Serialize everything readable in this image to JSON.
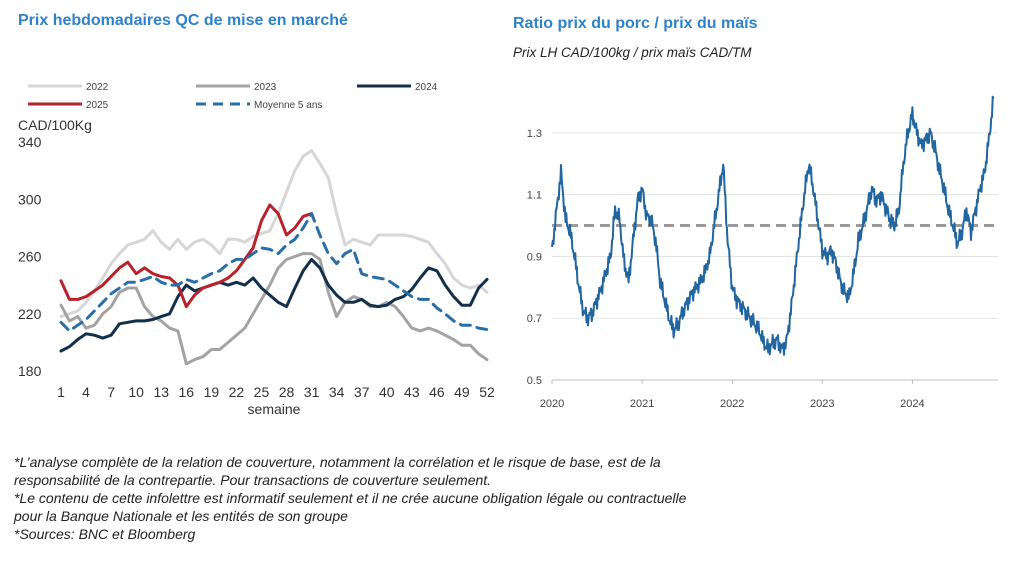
{
  "chart_data": [
    {
      "type": "line",
      "title": "Prix hebdomadaires QC de mise en marché",
      "ylabel": "CAD/100Kg",
      "xlabel": "semaine",
      "ylim": [
        180,
        340
      ],
      "yticks": [
        180,
        220,
        260,
        300,
        340
      ],
      "xlim": [
        1,
        52
      ],
      "xticks": [
        1,
        4,
        7,
        10,
        13,
        16,
        19,
        22,
        25,
        28,
        31,
        34,
        37,
        40,
        43,
        46,
        49,
        52
      ],
      "legend_placement": "top",
      "grid": false,
      "series": [
        {
          "name": "2022",
          "color": "#d6d6d6",
          "style": "solid",
          "x": [
            1,
            2,
            3,
            4,
            5,
            6,
            7,
            8,
            9,
            10,
            11,
            12,
            13,
            14,
            15,
            16,
            17,
            18,
            19,
            20,
            21,
            22,
            23,
            24,
            25,
            26,
            27,
            28,
            29,
            30,
            31,
            32,
            33,
            34,
            35,
            36,
            37,
            38,
            39,
            40,
            41,
            42,
            43,
            44,
            45,
            46,
            47,
            48,
            49,
            50,
            51,
            52
          ],
          "y": [
            218,
            220,
            222,
            228,
            236,
            245,
            255,
            262,
            268,
            270,
            272,
            278,
            270,
            265,
            272,
            265,
            270,
            272,
            268,
            262,
            272,
            272,
            270,
            274,
            276,
            278,
            290,
            305,
            320,
            330,
            334,
            325,
            315,
            290,
            268,
            272,
            270,
            268,
            275,
            275,
            275,
            275,
            274,
            272,
            270,
            262,
            255,
            245,
            240,
            238,
            240,
            235
          ]
        },
        {
          "name": "2023",
          "color": "#a3a3a3",
          "style": "solid",
          "x": [
            1,
            2,
            3,
            4,
            5,
            6,
            7,
            8,
            9,
            10,
            11,
            12,
            13,
            14,
            15,
            16,
            17,
            18,
            19,
            20,
            21,
            22,
            23,
            24,
            25,
            26,
            27,
            28,
            29,
            30,
            31,
            32,
            33,
            34,
            35,
            36,
            37,
            38,
            39,
            40,
            41,
            42,
            43,
            44,
            45,
            46,
            47,
            48,
            49,
            50,
            51,
            52
          ],
          "y": [
            226,
            215,
            218,
            210,
            212,
            220,
            225,
            235,
            238,
            238,
            225,
            218,
            215,
            210,
            208,
            185,
            188,
            190,
            195,
            195,
            200,
            205,
            210,
            220,
            230,
            240,
            252,
            258,
            260,
            262,
            262,
            258,
            235,
            218,
            228,
            232,
            230,
            225,
            225,
            228,
            225,
            218,
            210,
            208,
            210,
            208,
            205,
            202,
            198,
            198,
            192,
            188
          ]
        },
        {
          "name": "2024",
          "color": "#13304b",
          "style": "solid",
          "x": [
            1,
            2,
            3,
            4,
            5,
            6,
            7,
            8,
            9,
            10,
            11,
            12,
            13,
            14,
            15,
            16,
            17,
            18,
            19,
            20,
            21,
            22,
            23,
            24,
            25,
            26,
            27,
            28,
            29,
            30,
            31,
            32,
            33,
            34,
            35,
            36,
            37,
            38,
            39,
            40,
            41,
            42,
            43,
            44,
            45,
            46,
            47,
            48,
            49,
            50,
            51,
            52
          ],
          "y": [
            194,
            197,
            202,
            206,
            205,
            203,
            205,
            213,
            214,
            215,
            215,
            216,
            218,
            220,
            232,
            240,
            236,
            238,
            240,
            242,
            240,
            242,
            240,
            245,
            238,
            233,
            228,
            225,
            238,
            250,
            258,
            252,
            240,
            233,
            228,
            228,
            230,
            226,
            225,
            226,
            230,
            232,
            237,
            245,
            252,
            250,
            240,
            232,
            226,
            226,
            238,
            244
          ]
        },
        {
          "name": "2025",
          "color": "#b8222a",
          "style": "solid",
          "x": [
            1,
            2,
            3,
            4,
            5,
            6,
            7,
            8,
            9,
            10,
            11,
            12,
            13,
            14,
            15,
            16,
            17,
            18,
            19,
            20,
            21,
            22,
            23,
            24,
            25,
            26,
            27,
            28,
            29,
            30,
            31
          ],
          "y": [
            243,
            230,
            230,
            232,
            236,
            240,
            246,
            252,
            256,
            248,
            252,
            248,
            246,
            245,
            240,
            225,
            233,
            238,
            240,
            242,
            245,
            250,
            258,
            266,
            285,
            296,
            290,
            275,
            280,
            288,
            290
          ]
        },
        {
          "name": "Moyenne 5 ans",
          "color": "#2a6ea8",
          "style": "dashed",
          "x": [
            1,
            2,
            3,
            4,
            5,
            6,
            7,
            8,
            9,
            10,
            11,
            12,
            13,
            14,
            15,
            16,
            17,
            18,
            19,
            20,
            21,
            22,
            23,
            24,
            25,
            26,
            27,
            28,
            29,
            30,
            31,
            32,
            33,
            34,
            35,
            36,
            37,
            38,
            39,
            40,
            41,
            42,
            43,
            44,
            45,
            46,
            47,
            48,
            49,
            50,
            51,
            52
          ],
          "y": [
            214,
            208,
            212,
            216,
            222,
            228,
            234,
            238,
            242,
            242,
            244,
            246,
            242,
            240,
            240,
            244,
            242,
            245,
            248,
            250,
            255,
            258,
            258,
            262,
            266,
            265,
            262,
            268,
            272,
            280,
            290,
            275,
            262,
            255,
            262,
            265,
            248,
            246,
            245,
            244,
            240,
            236,
            232,
            230,
            230,
            224,
            220,
            215,
            212,
            212,
            210,
            209
          ]
        }
      ]
    },
    {
      "type": "line",
      "title": "Ratio prix du porc / prix du maïs",
      "subtitle": "Prix LH CAD/100kg / prix maïs CAD/TM",
      "ylim": [
        0.5,
        1.4
      ],
      "yticks": [
        "0.5",
        "0.7",
        "0.9",
        "1.1",
        "1.3"
      ],
      "xlim": [
        2020.0,
        2024.95
      ],
      "xticks": [
        "2020",
        "2021",
        "2022",
        "2023",
        "2024"
      ],
      "reference_line": {
        "y": 1.0,
        "color": "#9a9a9a",
        "style": "dashed"
      },
      "grid": true,
      "series": [
        {
          "color": "#2166a0",
          "x": [
            2020.0,
            2020.05,
            2020.1,
            2020.15,
            2020.2,
            2020.25,
            2020.3,
            2020.35,
            2020.4,
            2020.45,
            2020.5,
            2020.55,
            2020.6,
            2020.65,
            2020.7,
            2020.75,
            2020.8,
            2020.85,
            2020.9,
            2020.95,
            2021.0,
            2021.05,
            2021.1,
            2021.15,
            2021.2,
            2021.25,
            2021.3,
            2021.35,
            2021.4,
            2021.45,
            2021.5,
            2021.55,
            2021.6,
            2021.65,
            2021.7,
            2021.75,
            2021.8,
            2021.85,
            2021.9,
            2021.95,
            2022.0,
            2022.05,
            2022.1,
            2022.15,
            2022.2,
            2022.25,
            2022.3,
            2022.35,
            2022.4,
            2022.45,
            2022.5,
            2022.55,
            2022.6,
            2022.65,
            2022.7,
            2022.75,
            2022.8,
            2022.85,
            2022.9,
            2022.95,
            2023.0,
            2023.05,
            2023.1,
            2023.15,
            2023.2,
            2023.25,
            2023.3,
            2023.35,
            2023.4,
            2023.45,
            2023.5,
            2023.55,
            2023.6,
            2023.65,
            2023.7,
            2023.75,
            2023.8,
            2023.85,
            2023.9,
            2023.95,
            2024.0,
            2024.05,
            2024.1,
            2024.15,
            2024.2,
            2024.25,
            2024.3,
            2024.35,
            2024.4,
            2024.45,
            2024.5,
            2024.55,
            2024.6,
            2024.65,
            2024.7,
            2024.75,
            2024.8,
            2024.85,
            2024.9
          ],
          "y": [
            0.92,
            1.05,
            1.17,
            1.02,
            0.98,
            0.9,
            0.8,
            0.72,
            0.7,
            0.72,
            0.76,
            0.8,
            0.85,
            0.9,
            1.05,
            1.02,
            0.88,
            0.82,
            0.95,
            1.08,
            1.12,
            1.03,
            1.02,
            0.95,
            0.82,
            0.76,
            0.7,
            0.66,
            0.68,
            0.72,
            0.75,
            0.78,
            0.8,
            0.82,
            0.85,
            0.9,
            1.0,
            1.1,
            1.2,
            0.95,
            0.8,
            0.76,
            0.74,
            0.72,
            0.7,
            0.68,
            0.66,
            0.62,
            0.6,
            0.62,
            0.63,
            0.6,
            0.62,
            0.72,
            0.85,
            0.98,
            1.1,
            1.2,
            1.12,
            1.02,
            0.92,
            0.9,
            0.92,
            0.88,
            0.82,
            0.78,
            0.77,
            0.85,
            0.95,
            1.0,
            1.06,
            1.12,
            1.08,
            1.1,
            1.06,
            1.02,
            1.0,
            1.05,
            1.2,
            1.3,
            1.36,
            1.3,
            1.26,
            1.28,
            1.3,
            1.25,
            1.18,
            1.12,
            1.05,
            1.0,
            0.94,
            0.98,
            1.05,
            0.98,
            1.05,
            1.12,
            1.17,
            1.28,
            1.41
          ]
        }
      ]
    }
  ],
  "footnotes": [
    "*L’analyse complète de la relation de couverture, notamment la corrélation et le risque de base, est de la",
    "responsabilité de la contrepartie. Pour transactions de couverture seulement.",
    "*Le contenu de cette infolettre est informatif seulement et il ne crée aucune obligation légale ou contractuelle",
    "pour la Banque Nationale et les entités de son groupe",
    "*Sources: BNC et Bloomberg"
  ]
}
